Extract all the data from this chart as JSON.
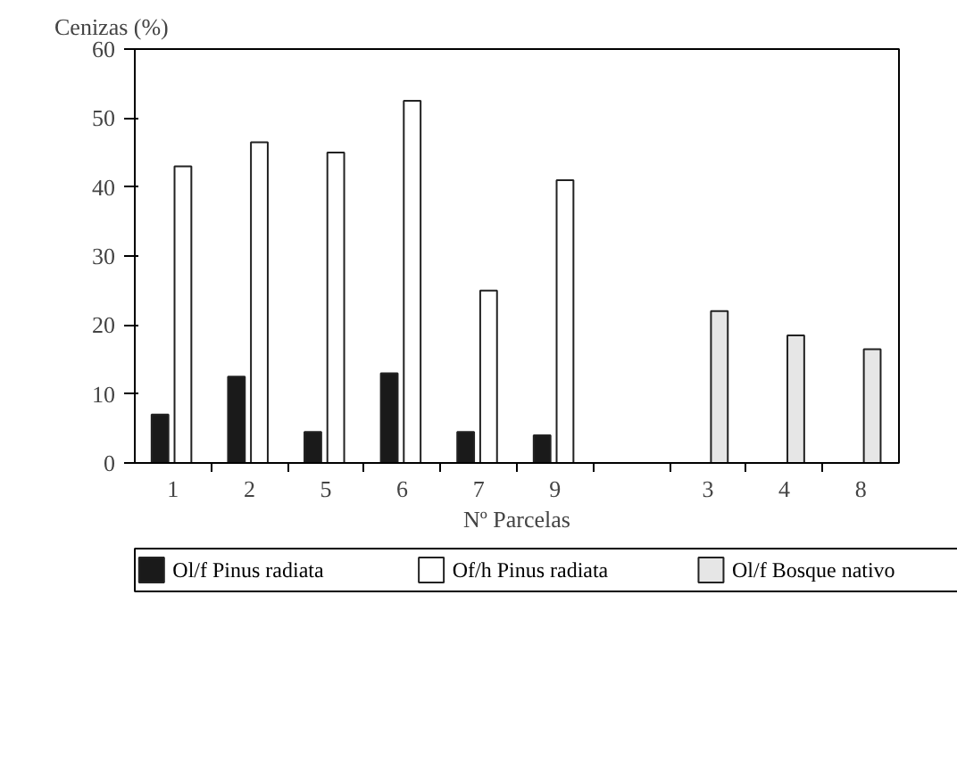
{
  "chart_data": {
    "type": "bar",
    "title": "Cenizas (%)",
    "xlabel": "Nº Parcelas",
    "categories": [
      "1",
      "2",
      "5",
      "6",
      "7",
      "9",
      null,
      "3",
      "4",
      "8"
    ],
    "series": [
      {
        "name": "Ol/f Pinus radiata",
        "color": "#1a1a1a",
        "values": [
          7,
          12.5,
          4.5,
          13,
          4.5,
          4,
          null,
          null,
          null,
          null
        ]
      },
      {
        "name": "Of/h Pinus radiata",
        "color": "#ffffff",
        "values": [
          43,
          46.5,
          45,
          52.5,
          25,
          41,
          null,
          null,
          null,
          null
        ]
      },
      {
        "name": "Ol/f Bosque nativo",
        "color": "#e6e6e6",
        "values": [
          null,
          null,
          null,
          null,
          null,
          null,
          null,
          22,
          18.5,
          16.5
        ]
      }
    ],
    "ylim": [
      0,
      60
    ],
    "yticks": [
      0,
      10,
      20,
      30,
      40,
      50,
      60
    ],
    "grid": false,
    "legend": "bottom"
  }
}
